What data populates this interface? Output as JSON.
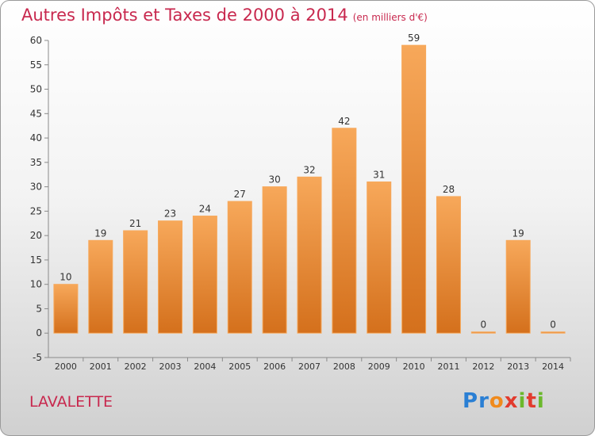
{
  "title": "Autres Impôts et Taxes de 2000 à 2014",
  "subtitle": "(en milliers d'€)",
  "place": "LAVALETTE",
  "logo": {
    "letters": [
      "P",
      "r",
      "o",
      "x",
      "i",
      "t",
      "i"
    ],
    "colors": [
      "#2a7fd4",
      "#2a7fd4",
      "#f08a1c",
      "#e23b2e",
      "#6bb82c",
      "#e23b2e",
      "#6bb82c"
    ]
  },
  "colors": {
    "bar_light": "#f7a85a",
    "bar_dark": "#d4701c",
    "title": "#c8284e"
  },
  "chart_data": {
    "type": "bar",
    "categories": [
      "2000",
      "2001",
      "2002",
      "2003",
      "2004",
      "2005",
      "2006",
      "2007",
      "2008",
      "2009",
      "2010",
      "2011",
      "2012",
      "2013",
      "2014"
    ],
    "values": [
      10,
      19,
      21,
      23,
      24,
      27,
      30,
      32,
      42,
      31,
      59,
      28,
      0,
      19,
      0
    ],
    "ylim": [
      -5,
      60
    ],
    "yticks": [
      -5,
      0,
      5,
      10,
      15,
      20,
      25,
      30,
      35,
      40,
      45,
      50,
      55,
      60
    ],
    "grid": false,
    "data_labels": true
  }
}
